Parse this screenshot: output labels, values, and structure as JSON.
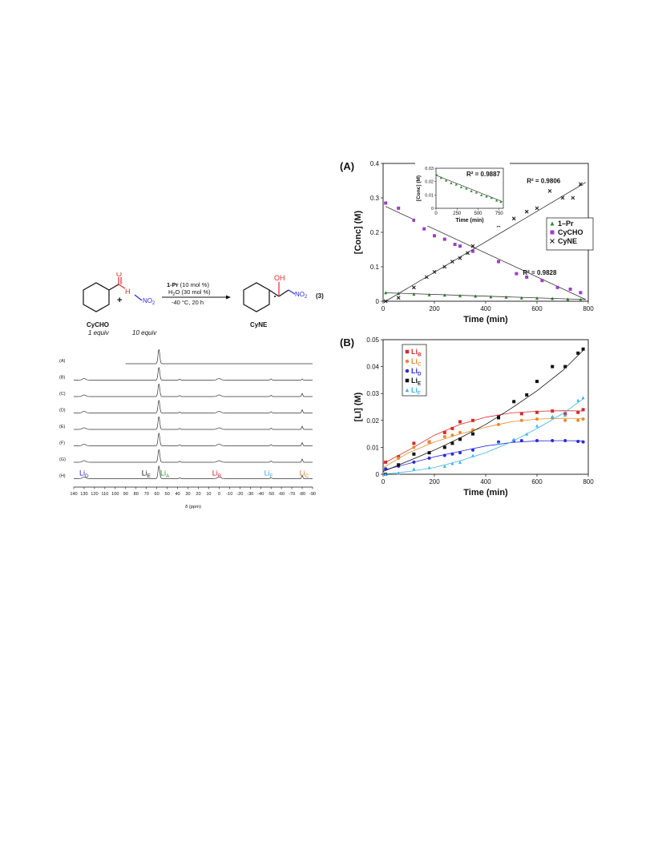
{
  "scheme": {
    "plus": "+",
    "reagent_catalyst": "1-Pr",
    "reagent_catalyst_amount": " (10 mol %)",
    "reagent_water_h": "H",
    "reagent_water_sub": "2",
    "reagent_water_o": "O (30 mol %)",
    "reagent_conditions": "-40 °C, 20 h",
    "equation_number": "(3)",
    "reactant1_name": "CyCHO",
    "reactant1_equiv": "1 equiv",
    "reactant2_equiv": "10 equiv",
    "reactant2_group": "NO",
    "reactant2_group_sub": "2",
    "aldehyde_o": "O",
    "aldehyde_h": "H",
    "product_oh": "OH",
    "product_group": "NO",
    "product_group_sub": "2",
    "product_name": "CyNE",
    "colors": {
      "red": "#e0282a",
      "blue": "#2a2ad6",
      "black": "#111111"
    }
  },
  "nmr": {
    "trace_labels": [
      "(A)",
      "(B)",
      "(C)",
      "(D)",
      "(E)",
      "(F)",
      "(G)",
      "(H)"
    ],
    "peak_labels": [
      {
        "base": "Li",
        "sub": "D",
        "color": "#2a2ad6"
      },
      {
        "base": "Li",
        "sub": "E",
        "color": "#111111"
      },
      {
        "base": "Li",
        "sub": "A",
        "color": "#2e8b2e"
      },
      {
        "base": "Li",
        "sub": "B",
        "color": "#c0202a"
      },
      {
        "base": "Li",
        "sub": "F",
        "color": "#3aa0e0"
      },
      {
        "base": "Li",
        "sub": "C",
        "color": "#e07a1a"
      }
    ],
    "axis_ticks": [
      "140",
      "130",
      "120",
      "110",
      "100",
      "90",
      "80",
      "70",
      "60",
      "50",
      "40",
      "30",
      "20",
      "10",
      "0",
      "-10",
      "-20",
      "-30",
      "-40",
      "-50",
      "-60",
      "-70",
      "-80",
      "-90"
    ],
    "axis_label": "δ (ppm)"
  },
  "chart_data": [
    {
      "type": "scatter",
      "panel_label": "(A)",
      "xlabel": "Time (min)",
      "ylabel": "[Conc] (M)",
      "xlim": [
        0,
        800
      ],
      "ylim": [
        0,
        0.4
      ],
      "x_ticks": [
        "0",
        "200",
        "400",
        "600",
        "800"
      ],
      "y_ticks": [
        "0",
        "0.1",
        "0.2",
        "0.3",
        "0.4"
      ],
      "legend_position": "right",
      "series": [
        {
          "name": "1–Pr",
          "marker": "triangle",
          "color": "#2e8b2e",
          "x": [
            10,
            60,
            120,
            180,
            240,
            300,
            360,
            420,
            480,
            540,
            600,
            660,
            720,
            770
          ],
          "y": [
            0.025,
            0.023,
            0.021,
            0.019,
            0.018,
            0.016,
            0.015,
            0.013,
            0.012,
            0.01,
            0.009,
            0.008,
            0.006,
            0.005
          ]
        },
        {
          "name": "CyCHO",
          "marker": "square",
          "color": "#9b3fc8",
          "x": [
            10,
            60,
            120,
            160,
            200,
            240,
            280,
            300,
            350,
            450,
            520,
            560,
            620,
            680,
            730,
            770
          ],
          "y": [
            0.285,
            0.27,
            0.235,
            0.21,
            0.19,
            0.18,
            0.165,
            0.16,
            0.145,
            0.115,
            0.08,
            0.07,
            0.06,
            0.04,
            0.035,
            0.025
          ],
          "fit": [
            [
              10,
              0.275
            ],
            [
              790,
              0.005
            ]
          ],
          "r2_label": "R² = 0.9828"
        },
        {
          "name": "CyNE",
          "marker": "x",
          "color": "#222222",
          "x": [
            10,
            60,
            120,
            170,
            200,
            240,
            270,
            300,
            330,
            350,
            450,
            510,
            560,
            600,
            650,
            700,
            740,
            770
          ],
          "y": [
            0.0,
            0.01,
            0.04,
            0.07,
            0.085,
            0.1,
            0.115,
            0.125,
            0.14,
            0.16,
            0.22,
            0.24,
            0.26,
            0.27,
            0.32,
            0.3,
            0.3,
            0.34
          ],
          "fit": [
            [
              10,
              0.0
            ],
            [
              790,
              0.345
            ]
          ],
          "r2_label": "R² = 0.9806"
        }
      ],
      "inset": {
        "xlabel": "Time (min)",
        "ylabel": "[Conc] (M)",
        "xlim": [
          0,
          800
        ],
        "ylim": [
          0,
          0.03
        ],
        "x_ticks": [
          "0",
          "250",
          "500",
          "750"
        ],
        "y_ticks": [
          "0",
          "0.01",
          "0.02",
          "0.03"
        ],
        "r2_label": "R² = 0.9887",
        "x": [
          10,
          60,
          120,
          180,
          240,
          300,
          360,
          420,
          480,
          540,
          600,
          660,
          720,
          770
        ],
        "y": [
          0.025,
          0.023,
          0.021,
          0.019,
          0.018,
          0.016,
          0.015,
          0.013,
          0.012,
          0.01,
          0.009,
          0.008,
          0.006,
          0.005
        ],
        "fit": [
          [
            10,
            0.0245
          ],
          [
            790,
            0.005
          ]
        ]
      }
    },
    {
      "type": "scatter",
      "panel_label": "(B)",
      "xlabel": "Time (min)",
      "ylabel": "[LI] (M)",
      "xlim": [
        0,
        800
      ],
      "ylim": [
        0,
        0.05
      ],
      "x_ticks": [
        "0",
        "200",
        "400",
        "600",
        "800"
      ],
      "y_ticks": [
        "0",
        "0.01",
        "0.02",
        "0.03",
        "0.04",
        "0.05"
      ],
      "legend_position": "top-left",
      "series": [
        {
          "name": "Li",
          "sub": "B",
          "marker": "square",
          "color": "#d42a2a",
          "x": [
            10,
            60,
            120,
            180,
            240,
            270,
            300,
            350,
            450,
            540,
            600,
            660,
            710,
            760,
            780
          ],
          "y": [
            0.0045,
            0.0065,
            0.0115,
            0.012,
            0.0155,
            0.017,
            0.0195,
            0.02,
            0.0215,
            0.0225,
            0.023,
            0.0235,
            0.0225,
            0.023,
            0.024
          ],
          "curve": [
            [
              0,
              0.004
            ],
            [
              100,
              0.009
            ],
            [
              200,
              0.0145
            ],
            [
              300,
              0.0185
            ],
            [
              400,
              0.0212
            ],
            [
              500,
              0.0228
            ],
            [
              600,
              0.0234
            ],
            [
              700,
              0.0236
            ],
            [
              780,
              0.0235
            ]
          ]
        },
        {
          "name": "Li",
          "sub": "C",
          "marker": "circle",
          "color": "#e88a2a",
          "x": [
            10,
            60,
            120,
            180,
            240,
            270,
            300,
            350,
            450,
            540,
            600,
            660,
            710,
            760,
            780
          ],
          "y": [
            0.002,
            0.006,
            0.01,
            0.012,
            0.014,
            0.0145,
            0.0155,
            0.0165,
            0.0185,
            0.02,
            0.0205,
            0.021,
            0.02,
            0.02,
            0.0205
          ],
          "curve": [
            [
              0,
              0.0025
            ],
            [
              100,
              0.008
            ],
            [
              200,
              0.012
            ],
            [
              300,
              0.015
            ],
            [
              400,
              0.0175
            ],
            [
              500,
              0.0195
            ],
            [
              600,
              0.0205
            ],
            [
              700,
              0.0208
            ],
            [
              780,
              0.0207
            ]
          ]
        },
        {
          "name": "Li",
          "sub": "D",
          "marker": "circle",
          "color": "#2a2ad6",
          "x": [
            10,
            60,
            120,
            180,
            240,
            270,
            300,
            350,
            450,
            510,
            540,
            600,
            660,
            710,
            760,
            780
          ],
          "y": [
            0.002,
            0.003,
            0.0045,
            0.006,
            0.007,
            0.0075,
            0.008,
            0.009,
            0.012,
            0.0125,
            0.0125,
            0.0125,
            0.0125,
            0.0125,
            0.0122,
            0.012
          ],
          "curve": [
            [
              0,
              0.0015
            ],
            [
              100,
              0.004
            ],
            [
              200,
              0.0065
            ],
            [
              300,
              0.0085
            ],
            [
              400,
              0.0105
            ],
            [
              500,
              0.0118
            ],
            [
              600,
              0.0124
            ],
            [
              700,
              0.0125
            ],
            [
              780,
              0.0124
            ]
          ]
        },
        {
          "name": "Li",
          "sub": "E",
          "marker": "square",
          "color": "#111111",
          "x": [
            10,
            60,
            120,
            180,
            240,
            270,
            300,
            350,
            450,
            510,
            560,
            600,
            660,
            710,
            760,
            780
          ],
          "y": [
            0.0,
            0.0035,
            0.0075,
            0.008,
            0.01,
            0.0115,
            0.013,
            0.015,
            0.021,
            0.027,
            0.0295,
            0.0345,
            0.04,
            0.04,
            0.045,
            0.0465
          ],
          "curve": [
            [
              0,
              0.001
            ],
            [
              100,
              0.005
            ],
            [
              200,
              0.009
            ],
            [
              300,
              0.0135
            ],
            [
              400,
              0.0185
            ],
            [
              500,
              0.0245
            ],
            [
              600,
              0.031
            ],
            [
              700,
              0.0385
            ],
            [
              780,
              0.046
            ]
          ]
        },
        {
          "name": "Li",
          "sub": "F",
          "marker": "triangle",
          "color": "#3ab4ea",
          "x": [
            10,
            60,
            120,
            180,
            240,
            270,
            300,
            350,
            450,
            510,
            560,
            600,
            660,
            710,
            760,
            780
          ],
          "y": [
            0.0,
            0.0005,
            0.002,
            0.0025,
            0.003,
            0.004,
            0.0045,
            0.007,
            0.0115,
            0.013,
            0.015,
            0.018,
            0.0215,
            0.022,
            0.0275,
            0.0285
          ],
          "curve": [
            [
              0,
              0.0
            ],
            [
              100,
              0.001
            ],
            [
              200,
              0.0025
            ],
            [
              300,
              0.005
            ],
            [
              400,
              0.008
            ],
            [
              500,
              0.012
            ],
            [
              600,
              0.017
            ],
            [
              700,
              0.0225
            ],
            [
              780,
              0.028
            ]
          ]
        }
      ]
    }
  ]
}
